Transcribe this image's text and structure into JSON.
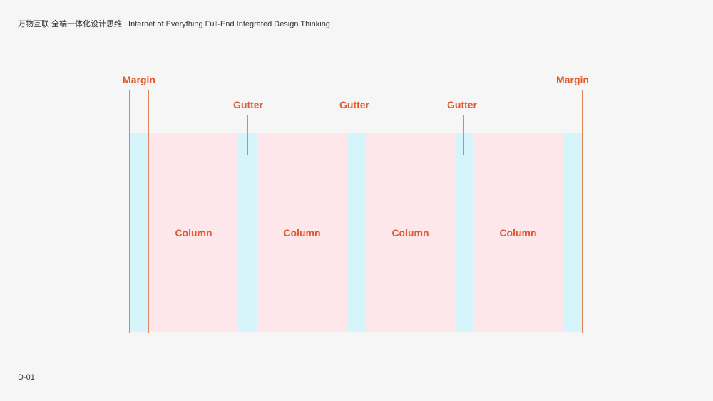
{
  "header": {
    "title": "万物互联 全端一体化设计思维 | Internet of Everything Full-End Integrated Design Thinking"
  },
  "footer": {
    "page": "D-01"
  },
  "diagram": {
    "margin_label": "Margin",
    "gutter_label": "Gutter",
    "column_labels": [
      "Column",
      "Column",
      "Column",
      "Column"
    ],
    "colors": {
      "margin_gutter": "#d6f5fa",
      "column": "#fde7ea",
      "accent": "#e2582a"
    }
  }
}
